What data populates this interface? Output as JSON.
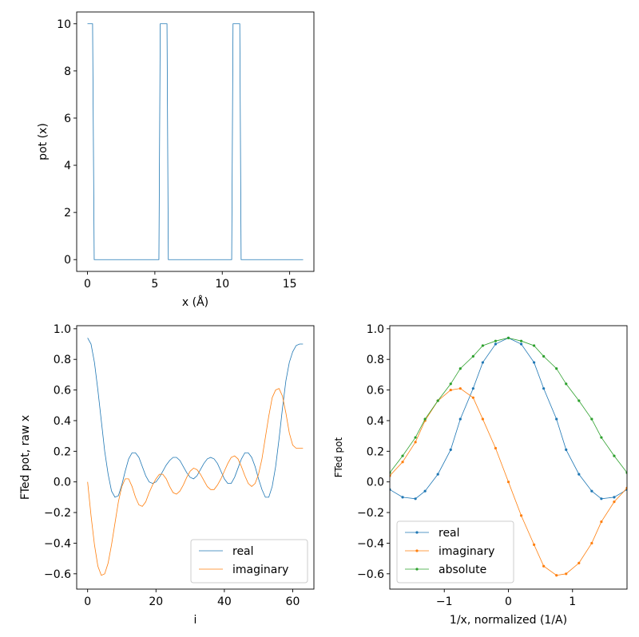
{
  "colors": {
    "blue": "#1f77b4",
    "orange": "#ff7f0e",
    "green": "#2ca02c"
  },
  "chart_data": [
    {
      "id": "pot",
      "type": "line",
      "xlabel": "x (Å)",
      "ylabel": "pot (x)",
      "xlim": [
        -0.8,
        16.8
      ],
      "ylim": [
        -0.5,
        10.5
      ],
      "xticks": [
        0,
        5,
        10,
        15
      ],
      "yticks": [
        0,
        2,
        4,
        6,
        8,
        10
      ],
      "series": [
        {
          "color": "#1f77b4",
          "x": [
            0,
            0.38,
            0.5,
            5.3,
            5.4,
            5.9,
            6.0,
            10.7,
            10.8,
            11.3,
            11.4,
            16
          ],
          "y": [
            10,
            10,
            0,
            0,
            10,
            10,
            0,
            0,
            10,
            10,
            0,
            0
          ]
        }
      ]
    },
    {
      "id": "ft-raw",
      "type": "line",
      "xlabel": "i",
      "ylabel": "FTed pot, raw x",
      "xlim": [
        -3.2,
        66.2
      ],
      "ylim": [
        -0.7,
        1.02
      ],
      "xticks": [
        0,
        20,
        40,
        60
      ],
      "yticks": [
        -0.6,
        -0.4,
        -0.2,
        0.0,
        0.2,
        0.4,
        0.6,
        0.8,
        1.0
      ],
      "legend_loc": "lower-right",
      "series": [
        {
          "name": "real",
          "color": "#1f77b4",
          "x": [
            0,
            1,
            2,
            3,
            4,
            5,
            6,
            7,
            8,
            9,
            10,
            11,
            12,
            13,
            14,
            15,
            16,
            17,
            18,
            19,
            20,
            21,
            22,
            23,
            24,
            25,
            26,
            27,
            28,
            29,
            30,
            31,
            32,
            33,
            34,
            35,
            36,
            37,
            38,
            39,
            40,
            41,
            42,
            43,
            44,
            45,
            46,
            47,
            48,
            49,
            50,
            51,
            52,
            53,
            54,
            55,
            56,
            57,
            58,
            59,
            60,
            61,
            62,
            63
          ],
          "y": [
            0.94,
            0.9,
            0.78,
            0.6,
            0.4,
            0.2,
            0.05,
            -0.06,
            -0.1,
            -0.09,
            -0.02,
            0.07,
            0.15,
            0.19,
            0.19,
            0.16,
            0.1,
            0.04,
            0.0,
            -0.01,
            0.0,
            0.03,
            0.07,
            0.11,
            0.14,
            0.16,
            0.16,
            0.14,
            0.1,
            0.06,
            0.03,
            0.02,
            0.04,
            0.08,
            0.12,
            0.15,
            0.16,
            0.15,
            0.12,
            0.07,
            0.02,
            -0.01,
            -0.01,
            0.03,
            0.09,
            0.15,
            0.19,
            0.19,
            0.16,
            0.1,
            0.02,
            -0.05,
            -0.1,
            -0.1,
            -0.03,
            0.1,
            0.28,
            0.48,
            0.66,
            0.78,
            0.85,
            0.89,
            0.9,
            0.9
          ]
        },
        {
          "name": "imaginary",
          "color": "#ff7f0e",
          "x": [
            0,
            1,
            2,
            3,
            4,
            5,
            6,
            7,
            8,
            9,
            10,
            11,
            12,
            13,
            14,
            15,
            16,
            17,
            18,
            19,
            20,
            21,
            22,
            23,
            24,
            25,
            26,
            27,
            28,
            29,
            30,
            31,
            32,
            33,
            34,
            35,
            36,
            37,
            38,
            39,
            40,
            41,
            42,
            43,
            44,
            45,
            46,
            47,
            48,
            49,
            50,
            51,
            52,
            53,
            54,
            55,
            56,
            57,
            58,
            59,
            60,
            61,
            62,
            63
          ],
          "y": [
            0.0,
            -0.22,
            -0.41,
            -0.55,
            -0.61,
            -0.6,
            -0.53,
            -0.41,
            -0.27,
            -0.13,
            -0.03,
            0.02,
            0.02,
            -0.03,
            -0.1,
            -0.15,
            -0.16,
            -0.13,
            -0.07,
            -0.02,
            0.02,
            0.05,
            0.05,
            0.02,
            -0.03,
            -0.07,
            -0.08,
            -0.06,
            -0.02,
            0.03,
            0.07,
            0.09,
            0.08,
            0.05,
            0.01,
            -0.03,
            -0.05,
            -0.05,
            -0.02,
            0.02,
            0.07,
            0.12,
            0.16,
            0.17,
            0.15,
            0.1,
            0.04,
            -0.01,
            -0.03,
            -0.01,
            0.05,
            0.15,
            0.29,
            0.43,
            0.55,
            0.6,
            0.61,
            0.56,
            0.45,
            0.32,
            0.24,
            0.22,
            0.22,
            0.22
          ]
        }
      ]
    },
    {
      "id": "ft-normalized",
      "type": "line",
      "xlabel": "1/x, normalized (1/A)",
      "ylabel": "FTed pot",
      "xlim": [
        -1.85,
        1.85
      ],
      "ylim": [
        -0.7,
        1.02
      ],
      "xticks": [
        -1,
        0,
        1
      ],
      "yticks": [
        -0.6,
        -0.4,
        -0.2,
        0.0,
        0.2,
        0.4,
        0.6,
        0.8,
        1.0
      ],
      "legend_loc": "lower-left",
      "series": [
        {
          "name": "real",
          "color": "#1f77b4",
          "marker": true,
          "x": [
            -1.85,
            -1.65,
            -1.45,
            -1.3,
            -1.1,
            -0.9,
            -0.75,
            -0.55,
            -0.4,
            -0.2,
            0.0,
            0.2,
            0.4,
            0.55,
            0.75,
            0.9,
            1.1,
            1.3,
            1.45,
            1.65,
            1.85
          ],
          "y": [
            -0.05,
            -0.1,
            -0.11,
            -0.06,
            0.05,
            0.21,
            0.41,
            0.61,
            0.78,
            0.9,
            0.94,
            0.9,
            0.78,
            0.61,
            0.41,
            0.21,
            0.05,
            -0.06,
            -0.11,
            -0.1,
            -0.05
          ]
        },
        {
          "name": "imaginary",
          "color": "#ff7f0e",
          "marker": true,
          "x": [
            -1.85,
            -1.65,
            -1.45,
            -1.3,
            -1.1,
            -0.9,
            -0.75,
            -0.55,
            -0.4,
            -0.2,
            0.0,
            0.2,
            0.4,
            0.55,
            0.75,
            0.9,
            1.1,
            1.3,
            1.45,
            1.65,
            1.85
          ],
          "y": [
            0.04,
            0.13,
            0.26,
            0.4,
            0.53,
            0.6,
            0.61,
            0.55,
            0.41,
            0.22,
            0.0,
            -0.22,
            -0.41,
            -0.55,
            -0.61,
            -0.6,
            -0.53,
            -0.4,
            -0.26,
            -0.13,
            -0.04
          ]
        },
        {
          "name": "absolute",
          "color": "#2ca02c",
          "marker": true,
          "x": [
            -1.85,
            -1.65,
            -1.45,
            -1.3,
            -1.1,
            -0.9,
            -0.75,
            -0.55,
            -0.4,
            -0.2,
            0.0,
            0.2,
            0.4,
            0.55,
            0.75,
            0.9,
            1.1,
            1.3,
            1.45,
            1.65,
            1.85
          ],
          "y": [
            0.06,
            0.17,
            0.29,
            0.41,
            0.53,
            0.64,
            0.74,
            0.82,
            0.89,
            0.92,
            0.94,
            0.92,
            0.89,
            0.82,
            0.74,
            0.64,
            0.53,
            0.41,
            0.29,
            0.17,
            0.06
          ]
        }
      ]
    }
  ]
}
